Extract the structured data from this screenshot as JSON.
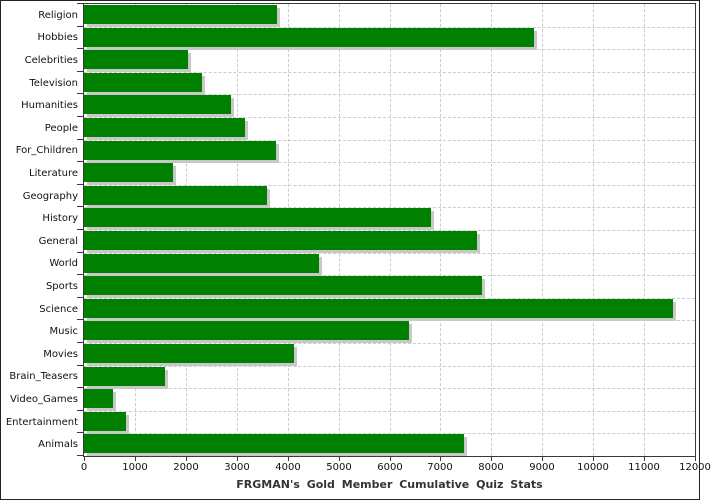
{
  "chart_data": {
    "type": "bar",
    "orientation": "horizontal",
    "title": "FRGMAN's Gold Member Cumulative Quiz Stats",
    "categories": [
      "Religion",
      "Hobbies",
      "Celebrities",
      "Television",
      "Humanities",
      "People",
      "For_Children",
      "Literature",
      "Geography",
      "History",
      "General",
      "World",
      "Sports",
      "Science",
      "Music",
      "Movies",
      "Brain_Teasers",
      "Video_Games",
      "Entertainment",
      "Animals"
    ],
    "values": [
      3790,
      8840,
      2050,
      2320,
      2890,
      3160,
      3780,
      1740,
      3590,
      6820,
      7710,
      4610,
      7820,
      11570,
      6380,
      4120,
      1590,
      560,
      830,
      7460
    ],
    "xlabel": "",
    "ylabel": "",
    "xlim": [
      0,
      12000
    ],
    "xtick_interval": 1000,
    "xtick_labels": [
      "0",
      "1000",
      "2000",
      "3000",
      "4000",
      "5000",
      "6000",
      "7000",
      "8000",
      "9000",
      "10000",
      "11000",
      "12000"
    ],
    "grid": true,
    "grid_style": "dashed",
    "legend": false,
    "colors": {
      "bar": "#008000",
      "bar_shadow": "#c8c8c8",
      "gridline": "#cccccc",
      "plot_border": "#3a3a3a",
      "background": "#ffffff",
      "tick_text": "#111111",
      "title_text": "#333333"
    }
  }
}
